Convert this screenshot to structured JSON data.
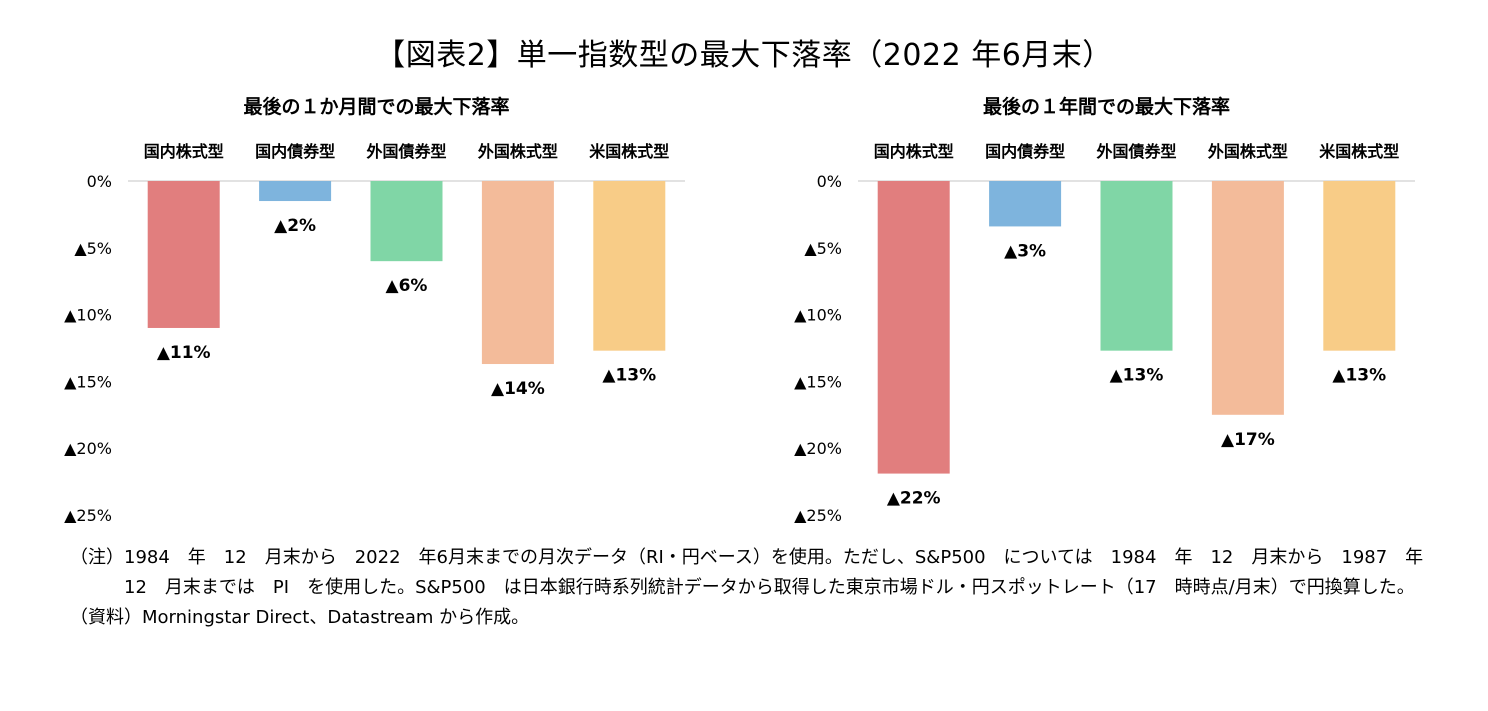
{
  "page_title": "【図表2】単一指数型の最大下落率（2022 年6月末）",
  "colors": {
    "国内株式型": "#e17e7e",
    "国内債券型": "#7eb4dd",
    "外国債券型": "#80d6a6",
    "外国株式型": "#f3bb9a",
    "米国株式型": "#f8cc87"
  },
  "chart_data": [
    {
      "type": "bar",
      "title": "最後の１か月間での最大下落率",
      "categories": [
        "国内株式型",
        "国内債券型",
        "外国債券型",
        "外国株式型",
        "米国株式型"
      ],
      "values": [
        -11,
        -1.5,
        -6,
        -13.7,
        -12.7
      ],
      "value_labels": [
        "▲11%",
        "▲2%",
        "▲6%",
        "▲14%",
        "▲13%"
      ],
      "yticks": [
        0,
        -5,
        -10,
        -15,
        -20,
        -25
      ],
      "ytick_labels": [
        "0%",
        "▲5%",
        "▲10%",
        "▲15%",
        "▲20%",
        "▲25%"
      ],
      "ylim": [
        -25,
        0
      ],
      "xlabel": "",
      "ylabel": ""
    },
    {
      "type": "bar",
      "title": "最後の１年間での最大下落率",
      "categories": [
        "国内株式型",
        "国内債券型",
        "外国債券型",
        "外国株式型",
        "米国株式型"
      ],
      "values": [
        -21.9,
        -3.4,
        -12.7,
        -17.5,
        -12.7
      ],
      "value_labels": [
        "▲22%",
        "▲3%",
        "▲13%",
        "▲17%",
        "▲13%"
      ],
      "yticks": [
        0,
        -5,
        -10,
        -15,
        -20,
        -25
      ],
      "ytick_labels": [
        "0%",
        "▲5%",
        "▲10%",
        "▲15%",
        "▲20%",
        "▲25%"
      ],
      "ylim": [
        -25,
        0
      ],
      "xlabel": "",
      "ylabel": ""
    }
  ],
  "notes": [
    {
      "label": "（注）",
      "text": "1984　年　12　月末から　2022　年6月末までの月次データ（RI・円ベース）を使用。ただし、S&P500　については　1984　年　12　月末から　1987　年　12　月末までは　PI　を使用した。S&P500　は日本銀行時系列統計データから取得した東京市場ドル・円スポットレート（17　時時点/月末）で円換算した。"
    },
    {
      "label": "（資料）",
      "text": "Morningstar Direct、Datastream から作成。"
    }
  ]
}
